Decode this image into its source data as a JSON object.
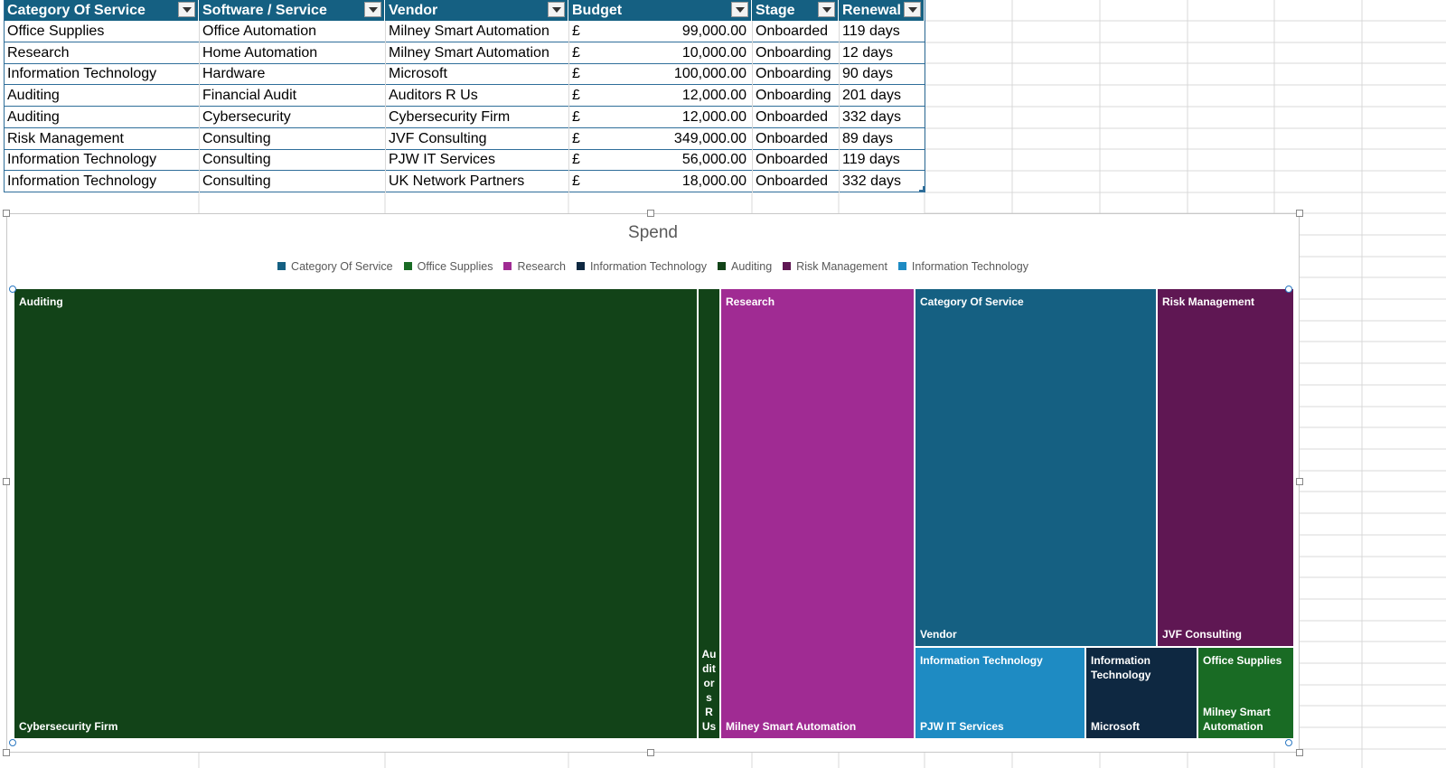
{
  "table": {
    "columns": [
      {
        "label": "Category Of Service"
      },
      {
        "label": "Software / Service"
      },
      {
        "label": "Vendor"
      },
      {
        "label": "Budget"
      },
      {
        "label": "Stage"
      },
      {
        "label": "Renewal"
      }
    ],
    "rows": [
      {
        "category": "Office Supplies",
        "service": "Office Automation",
        "vendor": "Milney Smart Automation",
        "currency": "£",
        "budget": "99,000.00",
        "stage": "Onboarded",
        "renewal": "119 days"
      },
      {
        "category": "Research",
        "service": "Home Automation",
        "vendor": "Milney Smart Automation",
        "currency": "£",
        "budget": "10,000.00",
        "stage": "Onboarding",
        "renewal": "12 days"
      },
      {
        "category": "Information Technology",
        "service": "Hardware",
        "vendor": "Microsoft",
        "currency": "£",
        "budget": "100,000.00",
        "stage": "Onboarding",
        "renewal": "90 days"
      },
      {
        "category": "Auditing",
        "service": "Financial Audit",
        "vendor": "Auditors R Us",
        "currency": "£",
        "budget": "12,000.00",
        "stage": "Onboarding",
        "renewal": "201 days"
      },
      {
        "category": "Auditing",
        "service": "Cybersecurity",
        "vendor": "Cybersecurity Firm",
        "currency": "£",
        "budget": "12,000.00",
        "stage": "Onboarded",
        "renewal": "332 days"
      },
      {
        "category": "Risk Management",
        "service": "Consulting",
        "vendor": "JVF Consulting",
        "currency": "£",
        "budget": "349,000.00",
        "stage": "Onboarded",
        "renewal": "89 days"
      },
      {
        "category": "Information Technology",
        "service": "Consulting",
        "vendor": "PJW IT Services",
        "currency": "£",
        "budget": "56,000.00",
        "stage": "Onboarded",
        "renewal": "119 days"
      },
      {
        "category": "Information Technology",
        "service": "Consulting",
        "vendor": "UK Network Partners",
        "currency": "£",
        "budget": "18,000.00",
        "stage": "Onboarded",
        "renewal": "332 days"
      }
    ]
  },
  "chart_data": {
    "type": "treemap",
    "title": "Spend",
    "legend": [
      {
        "name": "Category Of Service",
        "color": "#156082"
      },
      {
        "name": "Office Supplies",
        "color": "#196b24"
      },
      {
        "name": "Research",
        "color": "#a02b93"
      },
      {
        "name": "Information Technology",
        "color": "#0e2841"
      },
      {
        "name": "Auditing",
        "color": "#124318"
      },
      {
        "name": "Risk Management",
        "color": "#5f1753"
      },
      {
        "name": "Information Technology",
        "color": "#1e8bc3"
      }
    ],
    "tiles": [
      {
        "group": "Auditing",
        "leaf": "Cybersecurity Firm",
        "color": "#124318"
      },
      {
        "group": "",
        "leaf": "Auditors R Us",
        "color": "#124318"
      },
      {
        "group": "Research",
        "leaf": "Milney Smart Automation",
        "color": "#a02b93"
      },
      {
        "group": "Category Of Service",
        "leaf": "Vendor",
        "color": "#156082"
      },
      {
        "group": "Risk Management",
        "leaf": "JVF Consulting",
        "color": "#5f1753"
      },
      {
        "group": "Information Technology",
        "leaf": "PJW IT Services",
        "color": "#1e8bc3"
      },
      {
        "group": "Information Technology",
        "leaf": "Microsoft",
        "color": "#0e2841"
      },
      {
        "group": "Office Supplies",
        "leaf": "Milney Smart Automation",
        "color": "#196b24"
      }
    ]
  }
}
